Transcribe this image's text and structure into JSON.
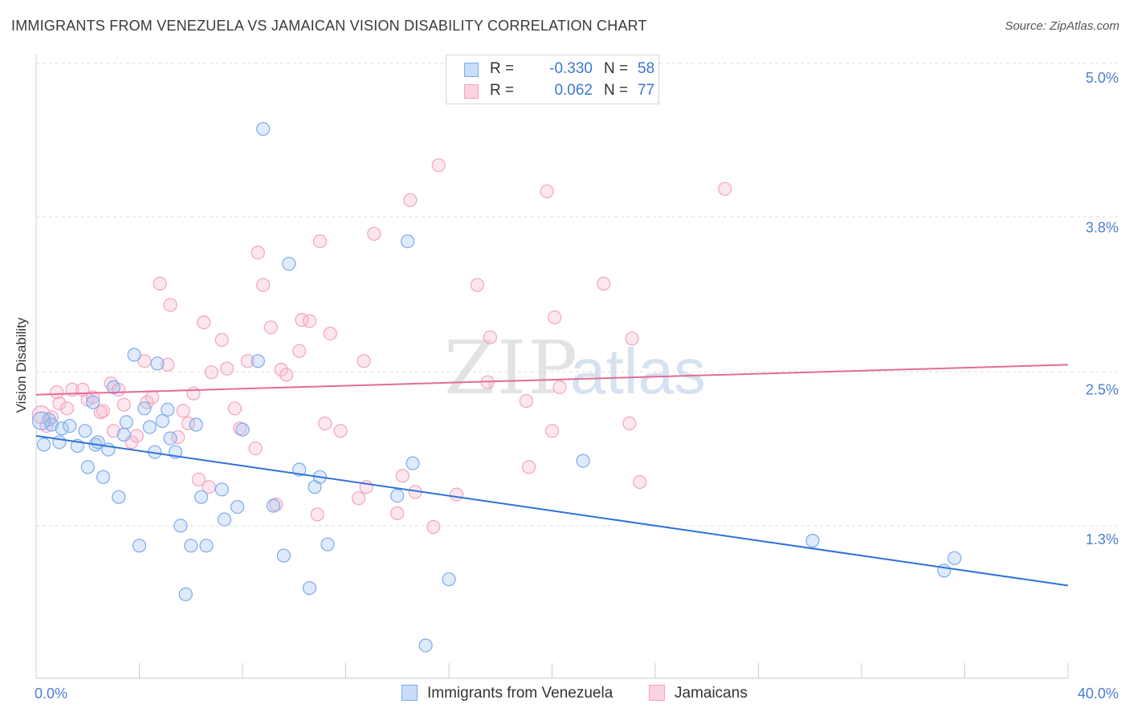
{
  "header": {
    "title": "IMMIGRANTS FROM VENEZUELA VS JAMAICAN VISION DISABILITY CORRELATION CHART",
    "source": "Source: ZipAtlas.com"
  },
  "watermark": {
    "part1": "ZIP",
    "part2": "atlas"
  },
  "legend": {
    "rows": [
      {
        "r_key": "R =",
        "r_value": "-0.330",
        "n_key": "N =",
        "n_value": "58",
        "color": "#7aaaf0"
      },
      {
        "r_key": "R =",
        "r_value": "0.062",
        "n_key": "N =",
        "n_value": "77",
        "color": "#f3a3bf"
      }
    ]
  },
  "bottom_legend": [
    {
      "label": "Immigrants from Venezuela",
      "color": "#7aaaf0"
    },
    {
      "label": "Jamaicans",
      "color": "#f3a3bf"
    }
  ],
  "chart_data": {
    "type": "scatter",
    "title": "IMMIGRANTS FROM VENEZUELA VS JAMAICAN VISION DISABILITY CORRELATION CHART",
    "xlabel": "",
    "ylabel": "Vision Disability",
    "xlim": [
      0,
      40
    ],
    "ylim": [
      0,
      5.2
    ],
    "x_tick_labels": [
      "0.0%",
      "40.0%"
    ],
    "y_ticks": [
      {
        "value": 1.3,
        "label": "1.3%"
      },
      {
        "value": 2.5,
        "label": "2.5%"
      },
      {
        "value": 3.8,
        "label": "3.8%"
      },
      {
        "value": 5.0,
        "label": "5.0%"
      }
    ],
    "grid": "horizontal dashed",
    "legend_position": "top-center",
    "series": [
      {
        "name": "Immigrants from Venezuela",
        "color": "#7aaaf0",
        "line_color": "#2f73d6",
        "trend": {
          "x": [
            0,
            40
          ],
          "y": [
            2.13,
            0.93
          ]
        },
        "points": [
          [
            0.3,
            2.06
          ],
          [
            0.5,
            2.26
          ],
          [
            0.6,
            2.22
          ],
          [
            0.9,
            2.08
          ],
          [
            1.0,
            2.19
          ],
          [
            1.3,
            2.21
          ],
          [
            1.6,
            2.05
          ],
          [
            1.9,
            2.17
          ],
          [
            2.0,
            1.88
          ],
          [
            2.2,
            2.4
          ],
          [
            2.3,
            2.06
          ],
          [
            2.4,
            2.08
          ],
          [
            2.6,
            1.8
          ],
          [
            2.8,
            2.02
          ],
          [
            3.0,
            2.52
          ],
          [
            3.2,
            1.64
          ],
          [
            3.4,
            2.14
          ],
          [
            3.5,
            2.24
          ],
          [
            3.8,
            2.78
          ],
          [
            4.0,
            1.25
          ],
          [
            4.2,
            2.35
          ],
          [
            4.4,
            2.2
          ],
          [
            4.6,
            2.0
          ],
          [
            4.7,
            2.71
          ],
          [
            4.9,
            2.25
          ],
          [
            5.1,
            2.34
          ],
          [
            5.2,
            2.11
          ],
          [
            5.4,
            2.0
          ],
          [
            5.6,
            1.41
          ],
          [
            5.8,
            0.86
          ],
          [
            6.0,
            1.25
          ],
          [
            6.2,
            2.22
          ],
          [
            6.4,
            1.64
          ],
          [
            6.6,
            1.25
          ],
          [
            7.2,
            1.7
          ],
          [
            7.3,
            1.46
          ],
          [
            7.8,
            1.56
          ],
          [
            8.0,
            2.18
          ],
          [
            8.6,
            2.73
          ],
          [
            8.8,
            4.59
          ],
          [
            9.2,
            1.57
          ],
          [
            9.6,
            1.17
          ],
          [
            9.8,
            3.51
          ],
          [
            10.2,
            1.86
          ],
          [
            10.6,
            0.91
          ],
          [
            10.8,
            1.72
          ],
          [
            11.0,
            1.8
          ],
          [
            11.3,
            1.26
          ],
          [
            14.0,
            1.65
          ],
          [
            14.4,
            3.69
          ],
          [
            14.6,
            1.91
          ],
          [
            16.0,
            0.98
          ],
          [
            15.1,
            0.45
          ],
          [
            21.2,
            1.93
          ],
          [
            30.1,
            1.29
          ],
          [
            35.2,
            1.05
          ],
          [
            35.6,
            1.15
          ],
          [
            0.2,
            2.25
          ]
        ]
      },
      {
        "name": "Jamaicans",
        "color": "#f3a3bf",
        "line_color": "#e56b96",
        "trend": {
          "x": [
            0,
            40
          ],
          "y": [
            2.46,
            2.7
          ]
        },
        "points": [
          [
            0.2,
            2.3
          ],
          [
            0.4,
            2.21
          ],
          [
            0.6,
            2.28
          ],
          [
            0.8,
            2.48
          ],
          [
            0.9,
            2.39
          ],
          [
            1.2,
            2.35
          ],
          [
            1.4,
            2.5
          ],
          [
            1.8,
            2.5
          ],
          [
            2.0,
            2.42
          ],
          [
            2.2,
            2.44
          ],
          [
            2.5,
            2.32
          ],
          [
            2.6,
            2.33
          ],
          [
            2.9,
            2.55
          ],
          [
            3.0,
            2.17
          ],
          [
            3.2,
            2.5
          ],
          [
            3.4,
            2.38
          ],
          [
            3.7,
            2.08
          ],
          [
            3.9,
            2.13
          ],
          [
            4.2,
            2.73
          ],
          [
            4.3,
            2.4
          ],
          [
            4.5,
            2.44
          ],
          [
            4.8,
            3.35
          ],
          [
            5.1,
            2.7
          ],
          [
            5.2,
            3.18
          ],
          [
            5.5,
            2.12
          ],
          [
            5.7,
            2.33
          ],
          [
            5.9,
            2.23
          ],
          [
            6.1,
            2.47
          ],
          [
            6.3,
            1.78
          ],
          [
            6.5,
            3.04
          ],
          [
            6.7,
            1.72
          ],
          [
            6.8,
            2.64
          ],
          [
            7.2,
            2.9
          ],
          [
            7.4,
            2.67
          ],
          [
            7.7,
            2.35
          ],
          [
            7.9,
            2.19
          ],
          [
            8.2,
            2.73
          ],
          [
            8.5,
            2.03
          ],
          [
            8.6,
            3.6
          ],
          [
            8.8,
            3.34
          ],
          [
            9.1,
            3.0
          ],
          [
            9.3,
            1.58
          ],
          [
            9.5,
            2.66
          ],
          [
            9.7,
            2.62
          ],
          [
            10.2,
            2.81
          ],
          [
            10.3,
            3.06
          ],
          [
            10.6,
            3.05
          ],
          [
            10.9,
            1.5
          ],
          [
            11.0,
            3.69
          ],
          [
            11.2,
            2.23
          ],
          [
            11.4,
            2.95
          ],
          [
            11.8,
            2.17
          ],
          [
            12.5,
            1.63
          ],
          [
            12.7,
            2.73
          ],
          [
            12.8,
            1.72
          ],
          [
            13.1,
            3.75
          ],
          [
            14.0,
            1.51
          ],
          [
            14.2,
            1.81
          ],
          [
            14.5,
            4.02
          ],
          [
            14.7,
            1.68
          ],
          [
            15.4,
            1.4
          ],
          [
            15.6,
            4.3
          ],
          [
            16.3,
            1.66
          ],
          [
            17.1,
            3.34
          ],
          [
            17.5,
            2.56
          ],
          [
            17.6,
            2.92
          ],
          [
            19.0,
            2.41
          ],
          [
            19.1,
            1.88
          ],
          [
            19.8,
            4.09
          ],
          [
            20.0,
            2.17
          ],
          [
            20.1,
            3.08
          ],
          [
            20.3,
            2.52
          ],
          [
            22.0,
            3.35
          ],
          [
            23.0,
            2.23
          ],
          [
            23.1,
            2.91
          ],
          [
            23.4,
            1.76
          ],
          [
            26.7,
            4.11
          ]
        ]
      }
    ]
  }
}
